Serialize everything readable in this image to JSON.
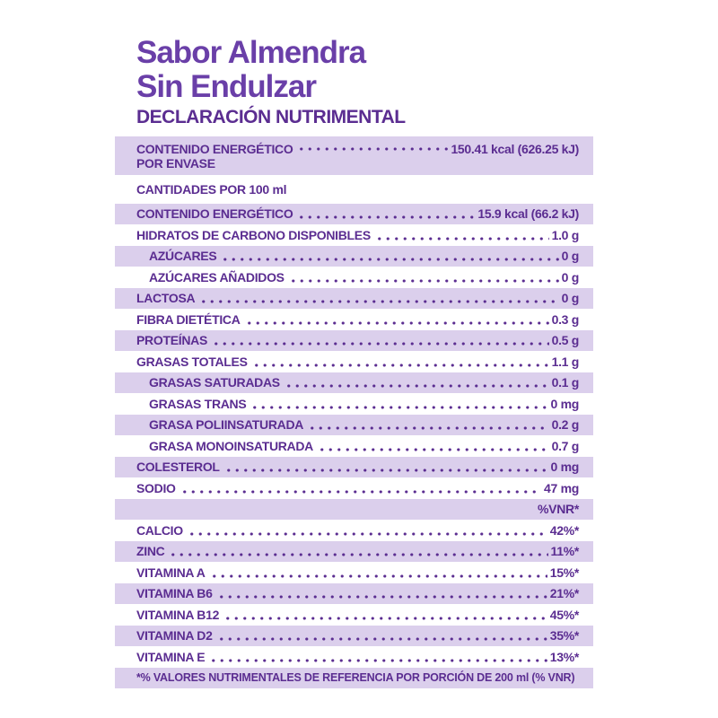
{
  "colors": {
    "text_purple": "#5b2d91",
    "title_purple": "#6a3fa8",
    "band_lavender": "#dbcfec",
    "background": "#ffffff"
  },
  "header": {
    "title_line1": "Sabor Almendra",
    "title_line2": "Sin Endulzar",
    "section_title": "DECLARACIÓN NUTRIMENTAL"
  },
  "table": {
    "rows": [
      {
        "type": "double",
        "label": "CONTENIDO ENERGÉTICO",
        "sublabel": "POR ENVASE",
        "value": "150.41 kcal (626.25 kJ)",
        "shaded": true,
        "indent": false
      },
      {
        "type": "plain",
        "label": "CANTIDADES POR 100 ml",
        "value": "",
        "shaded": false,
        "indent": false
      },
      {
        "type": "standard",
        "label": "CONTENIDO ENERGÉTICO",
        "value": "15.9 kcal (66.2 kJ)",
        "shaded": true,
        "indent": false
      },
      {
        "type": "standard",
        "label": "HIDRATOS DE CARBONO DISPONIBLES",
        "value": "1.0 g",
        "shaded": false,
        "indent": false
      },
      {
        "type": "standard",
        "label": "AZÚCARES",
        "value": "0 g",
        "shaded": true,
        "indent": true
      },
      {
        "type": "standard",
        "label": "AZÚCARES AÑADIDOS",
        "value": "0 g",
        "shaded": false,
        "indent": true
      },
      {
        "type": "standard",
        "label": "LACTOSA",
        "value": "0 g",
        "shaded": true,
        "indent": false
      },
      {
        "type": "standard",
        "label": "FIBRA DIETÉTICA",
        "value": "0.3 g",
        "shaded": false,
        "indent": false
      },
      {
        "type": "standard",
        "label": "PROTEÍNAS",
        "value": "0.5 g",
        "shaded": true,
        "indent": false
      },
      {
        "type": "standard",
        "label": "GRASAS TOTALES",
        "value": "1.1 g",
        "shaded": false,
        "indent": false
      },
      {
        "type": "standard",
        "label": "GRASAS SATURADAS",
        "value": "0.1 g",
        "shaded": true,
        "indent": true
      },
      {
        "type": "standard",
        "label": "GRASAS TRANS",
        "value": "0 mg",
        "shaded": false,
        "indent": true
      },
      {
        "type": "standard",
        "label": "GRASA POLIINSATURADA",
        "value": "0.2 g",
        "shaded": true,
        "indent": true
      },
      {
        "type": "standard",
        "label": "GRASA MONOINSATURADA",
        "value": "0.7 g",
        "shaded": false,
        "indent": true
      },
      {
        "type": "standard",
        "label": "COLESTEROL",
        "value": "0 mg",
        "shaded": true,
        "indent": false
      },
      {
        "type": "standard",
        "label": "SODIO",
        "value": "47 mg",
        "shaded": false,
        "indent": false
      },
      {
        "type": "value-only",
        "label": "",
        "value": "%VNR*",
        "shaded": true,
        "indent": false
      },
      {
        "type": "standard",
        "label": "CALCIO",
        "value": "42%*",
        "shaded": false,
        "indent": false
      },
      {
        "type": "standard",
        "label": "ZINC",
        "value": "11%*",
        "shaded": true,
        "indent": false
      },
      {
        "type": "standard",
        "label": "VITAMINA A",
        "value": "15%*",
        "shaded": false,
        "indent": false
      },
      {
        "type": "standard",
        "label": "VITAMINA B6",
        "value": "21%*",
        "shaded": true,
        "indent": false
      },
      {
        "type": "standard",
        "label": "VITAMINA B12",
        "value": "45%*",
        "shaded": false,
        "indent": false
      },
      {
        "type": "standard",
        "label": "VITAMINA D2",
        "value": "35%*",
        "shaded": true,
        "indent": false
      },
      {
        "type": "standard",
        "label": "VITAMINA E",
        "value": "13%*",
        "shaded": false,
        "indent": false
      }
    ],
    "footnote": "*% VALORES NUTRIMENTALES DE REFERENCIA POR PORCIÓN DE 200 ml (% VNR)"
  }
}
